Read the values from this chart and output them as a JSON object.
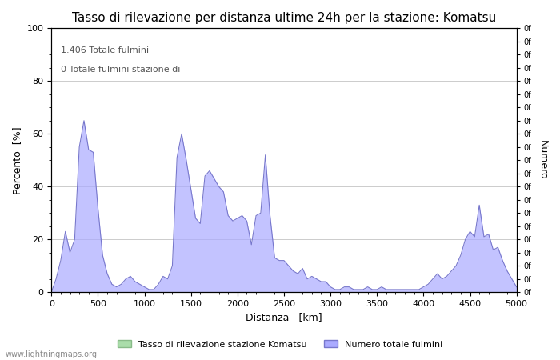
{
  "title": "Tasso di rilevazione per distanza ultime 24h per la stazione: Komatsu",
  "xlabel": "Distanza   [km]",
  "ylabel_left": "Percento  [%]",
  "ylabel_right": "Numero",
  "annotation_line1": "1.406 Totale fulmini",
  "annotation_line2": "0 Totale fulmini stazione di",
  "legend_green": "Tasso di rilevazione stazione Komatsu",
  "legend_blue": "Numero totale fulmini",
  "watermark": "www.lightningmaps.org",
  "xlim": [
    0,
    5000
  ],
  "ylim": [
    0,
    100
  ],
  "right_ytick_labels": [
    "0f",
    "0f",
    "0f",
    "0f",
    "0f",
    "0f",
    "0f",
    "0f",
    "0f",
    "0f",
    "0f",
    "0f",
    "0f",
    "0f",
    "0f",
    "0f",
    "0f",
    "0f",
    "0f",
    "0f",
    "0f"
  ],
  "xticks": [
    0,
    500,
    1000,
    1500,
    2000,
    2500,
    3000,
    3500,
    4000,
    4500,
    5000
  ],
  "yticks_left": [
    0,
    20,
    40,
    60,
    80,
    100
  ],
  "blue_fill_color": "#aaaaff",
  "blue_line_color": "#7777cc",
  "green_fill_color": "#aaddaa",
  "green_line_color": "#88bb88",
  "background_color": "#ffffff",
  "grid_color": "#cccccc",
  "title_fontsize": 11,
  "axis_fontsize": 9,
  "tick_fontsize": 8,
  "annotation_fontsize": 8,
  "blue_x": [
    0,
    50,
    100,
    150,
    200,
    250,
    300,
    350,
    400,
    450,
    500,
    550,
    600,
    650,
    700,
    750,
    800,
    850,
    900,
    950,
    1000,
    1050,
    1100,
    1150,
    1200,
    1250,
    1300,
    1350,
    1400,
    1450,
    1500,
    1550,
    1600,
    1650,
    1700,
    1750,
    1800,
    1850,
    1900,
    1950,
    2000,
    2050,
    2100,
    2150,
    2200,
    2250,
    2300,
    2350,
    2400,
    2450,
    2500,
    2550,
    2600,
    2650,
    2700,
    2750,
    2800,
    2850,
    2900,
    2950,
    3000,
    3050,
    3100,
    3150,
    3200,
    3250,
    3300,
    3350,
    3400,
    3450,
    3500,
    3550,
    3600,
    3650,
    3700,
    3750,
    3800,
    3850,
    3900,
    3950,
    4000,
    4050,
    4100,
    4150,
    4200,
    4250,
    4300,
    4350,
    4400,
    4450,
    4500,
    4550,
    4600,
    4650,
    4700,
    4750,
    4800,
    4850,
    4900,
    4950,
    5000
  ],
  "blue_y": [
    0,
    5,
    12,
    23,
    15,
    20,
    55,
    65,
    54,
    53,
    32,
    14,
    7,
    3,
    2,
    3,
    5,
    6,
    4,
    3,
    2,
    1,
    1,
    3,
    6,
    5,
    10,
    51,
    60,
    50,
    39,
    28,
    26,
    44,
    46,
    43,
    40,
    38,
    29,
    27,
    28,
    29,
    27,
    18,
    29,
    30,
    52,
    29,
    13,
    12,
    12,
    10,
    8,
    7,
    9,
    5,
    6,
    5,
    4,
    4,
    2,
    1,
    1,
    2,
    2,
    1,
    1,
    1,
    2,
    1,
    1,
    2,
    1,
    1,
    1,
    1,
    1,
    1,
    1,
    1,
    2,
    3,
    5,
    7,
    5,
    6,
    8,
    10,
    14,
    20,
    23,
    21,
    33,
    21,
    22,
    16,
    17,
    12,
    8,
    5,
    2
  ],
  "green_x": [
    0,
    50,
    100,
    150,
    200,
    250,
    300,
    350,
    400,
    450,
    500,
    550,
    600,
    650,
    700,
    750,
    800,
    850,
    900,
    950,
    1000,
    1050,
    1100,
    1150,
    1200,
    1250,
    1300,
    1350,
    1400,
    1450,
    1500,
    1550,
    1600,
    1650,
    1700,
    1750,
    1800,
    1850,
    1900,
    1950,
    2000,
    2050,
    2100,
    2150,
    2200,
    2250,
    2300,
    2350,
    2400,
    2450,
    2500,
    2550,
    2600,
    2650,
    2700,
    2750,
    2800,
    2850,
    2900,
    2950,
    3000,
    3050,
    3100,
    3150,
    3200,
    3250,
    3300,
    3350,
    3400,
    3450,
    3500,
    3550,
    3600,
    3650,
    3700,
    3750,
    3800,
    3850,
    3900,
    3950,
    4000,
    4050,
    4100,
    4150,
    4200,
    4250,
    4300,
    4350,
    4400,
    4450,
    4500,
    4550,
    4600,
    4650,
    4700,
    4750,
    4800,
    4850,
    4900,
    4950,
    5000
  ],
  "green_y": [
    0,
    0,
    0,
    0,
    0,
    0,
    0,
    0,
    0,
    0,
    0,
    0,
    0,
    0,
    0,
    0,
    0,
    0,
    0,
    0,
    0,
    0,
    0,
    0,
    0,
    0,
    0,
    0,
    0,
    0,
    0,
    0,
    0,
    0,
    0,
    0,
    0,
    0,
    0,
    0,
    0,
    0,
    0,
    0,
    0,
    0,
    0,
    0,
    0,
    0,
    0,
    0,
    0,
    0,
    0,
    0,
    0,
    0,
    0,
    0,
    0,
    0,
    0,
    0,
    0,
    0,
    0,
    0,
    0,
    0,
    0,
    0,
    0,
    0,
    0,
    0,
    0,
    0,
    0,
    0,
    0,
    0,
    0,
    0,
    0,
    0,
    0,
    0,
    0,
    0,
    0,
    0,
    0,
    0,
    0,
    0,
    0,
    0,
    0,
    0,
    0
  ]
}
